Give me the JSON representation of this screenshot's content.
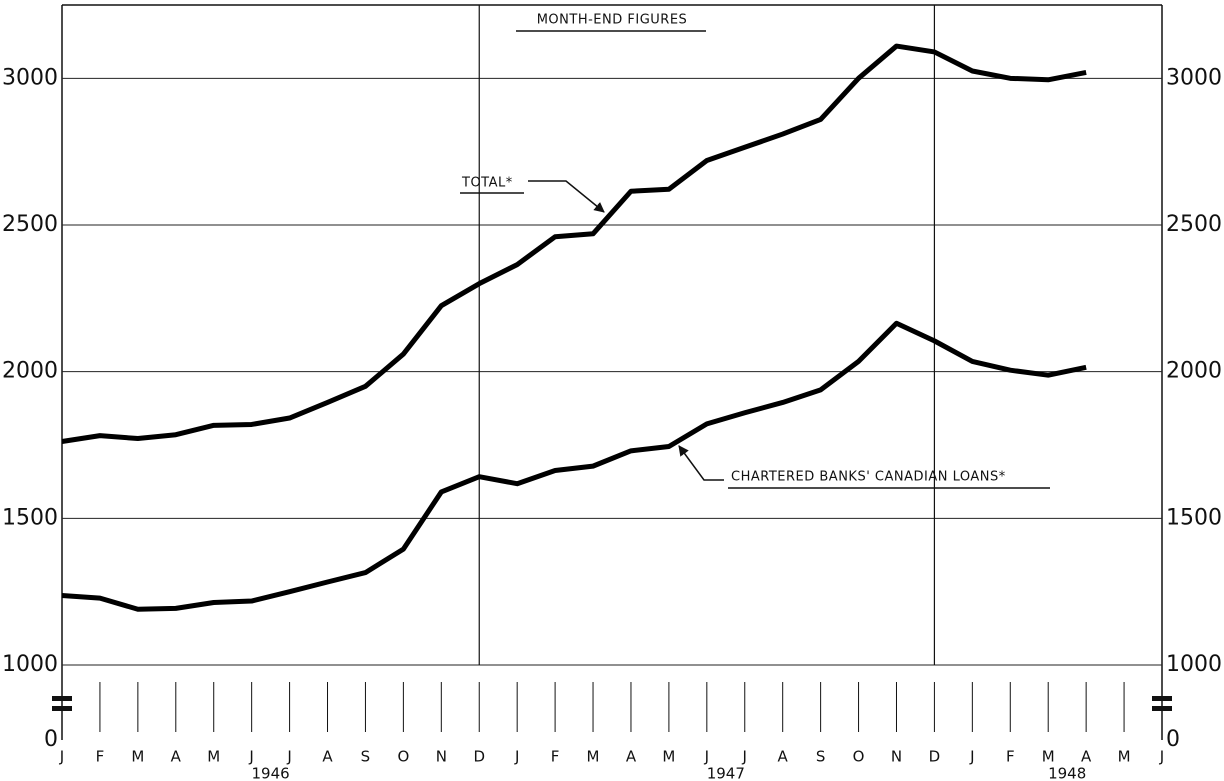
{
  "chart_data": {
    "type": "line",
    "title": "MONTH-END FIGURES",
    "categories": [
      "J",
      "F",
      "M",
      "A",
      "M",
      "J",
      "J",
      "A",
      "S",
      "O",
      "N",
      "D",
      "J",
      "F",
      "M",
      "A",
      "M",
      "J",
      "J",
      "A",
      "S",
      "O",
      "N",
      "D",
      "J",
      "F",
      "M",
      "A",
      "M",
      "J"
    ],
    "years": [
      "1946",
      "1947",
      "1948"
    ],
    "series": [
      {
        "name": "TOTAL*",
        "color": "#000000",
        "values": [
          1762,
          1782,
          1772,
          1785,
          1817,
          1820,
          1842,
          1895,
          1950,
          2060,
          2225,
          2300,
          2365,
          2460,
          2470,
          2615,
          2622,
          2720,
          2765,
          2810,
          2860,
          3000,
          3110,
          3090,
          3025,
          3000,
          2995,
          3020,
          null,
          null
        ]
      },
      {
        "name": "CHARTERED BANKS' CANADIAN LOANS*",
        "color": "#000000",
        "values": [
          1237,
          1228,
          1190,
          1193,
          1213,
          1218,
          1250,
          1283,
          1315,
          1395,
          1590,
          1642,
          1618,
          1663,
          1678,
          1730,
          1745,
          1822,
          1860,
          1895,
          1938,
          2035,
          2165,
          2105,
          2035,
          2005,
          1988,
          2015,
          null,
          null
        ]
      }
    ],
    "ylim": [
      0,
      3250
    ],
    "yticks": [
      0,
      1000,
      1500,
      2000,
      2500,
      3000
    ],
    "axis_break": true,
    "grid": true
  }
}
